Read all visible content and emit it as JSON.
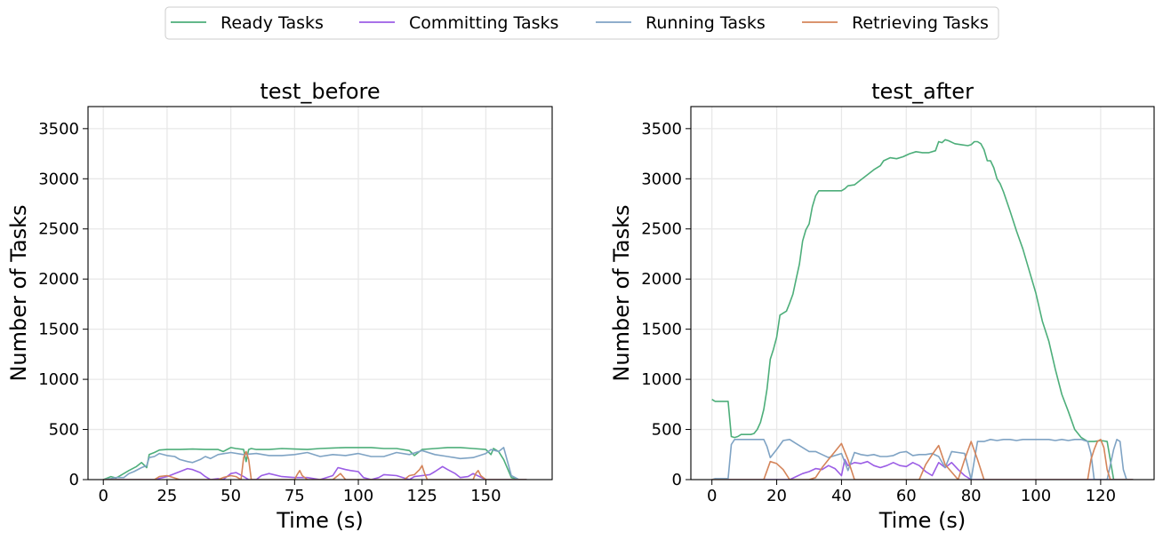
{
  "legend": {
    "placement": "top-center",
    "entries": [
      {
        "label": "Ready Tasks",
        "color": "#4dae7a"
      },
      {
        "label": "Committing Tasks",
        "color": "#9b5de5"
      },
      {
        "label": "Running Tasks",
        "color": "#7fa3c4"
      },
      {
        "label": "Retrieving Tasks",
        "color": "#d4845a"
      }
    ]
  },
  "chart_data": [
    {
      "type": "line",
      "title": "test_before",
      "xlabel": "Time (s)",
      "ylabel": "Number of Tasks",
      "xlim": [
        -6,
        176
      ],
      "ylim": [
        0,
        3720
      ],
      "xticks": [
        0,
        25,
        50,
        75,
        100,
        125,
        150
      ],
      "yticks": [
        0,
        500,
        1000,
        1500,
        2000,
        2500,
        3000,
        3500
      ],
      "grid": true,
      "series": [
        {
          "name": "Ready Tasks",
          "color": "#4dae7a",
          "x": [
            0,
            3,
            5,
            8,
            10,
            13,
            15,
            17,
            18,
            20,
            22,
            25,
            30,
            35,
            40,
            45,
            47,
            50,
            52,
            55,
            56,
            57,
            58,
            60,
            65,
            70,
            75,
            80,
            85,
            90,
            95,
            100,
            105,
            110,
            115,
            120,
            122,
            125,
            130,
            135,
            140,
            145,
            150,
            152,
            153,
            155,
            157,
            160,
            163,
            166
          ],
          "y": [
            0,
            30,
            15,
            60,
            90,
            130,
            170,
            120,
            250,
            270,
            295,
            300,
            300,
            305,
            300,
            300,
            280,
            320,
            310,
            300,
            180,
            300,
            310,
            300,
            300,
            310,
            305,
            300,
            310,
            315,
            320,
            320,
            320,
            310,
            310,
            290,
            240,
            300,
            310,
            320,
            320,
            310,
            300,
            250,
            310,
            280,
            200,
            20,
            0,
            0
          ]
        },
        {
          "name": "Committing Tasks",
          "color": "#9b5de5",
          "x": [
            0,
            20,
            25,
            28,
            30,
            33,
            35,
            38,
            40,
            42,
            45,
            47,
            50,
            52,
            55,
            57,
            60,
            62,
            65,
            70,
            75,
            80,
            85,
            90,
            92,
            95,
            97,
            100,
            102,
            105,
            108,
            110,
            115,
            120,
            122,
            125,
            128,
            130,
            133,
            135,
            138,
            140,
            143,
            145,
            150,
            155,
            160,
            166
          ],
          "y": [
            0,
            0,
            30,
            60,
            80,
            110,
            100,
            70,
            30,
            0,
            10,
            0,
            60,
            70,
            30,
            0,
            0,
            40,
            60,
            30,
            20,
            20,
            0,
            40,
            120,
            100,
            90,
            80,
            20,
            0,
            20,
            50,
            40,
            0,
            30,
            40,
            50,
            80,
            130,
            100,
            60,
            20,
            30,
            60,
            0,
            0,
            0,
            0
          ]
        },
        {
          "name": "Running Tasks",
          "color": "#7fa3c4",
          "x": [
            0,
            3,
            5,
            8,
            10,
            12,
            15,
            17,
            18,
            20,
            22,
            25,
            28,
            30,
            33,
            35,
            38,
            40,
            42,
            45,
            50,
            55,
            60,
            65,
            70,
            75,
            80,
            85,
            90,
            95,
            100,
            105,
            110,
            115,
            120,
            125,
            130,
            135,
            140,
            145,
            150,
            152,
            155,
            157,
            160,
            163,
            166
          ],
          "y": [
            0,
            10,
            20,
            20,
            60,
            80,
            120,
            140,
            220,
            230,
            260,
            240,
            230,
            200,
            180,
            170,
            200,
            230,
            210,
            250,
            270,
            250,
            260,
            240,
            240,
            250,
            270,
            230,
            250,
            240,
            260,
            230,
            230,
            270,
            250,
            290,
            250,
            230,
            210,
            220,
            260,
            300,
            280,
            320,
            40,
            0,
            0
          ]
        },
        {
          "name": "Retrieving Tasks",
          "color": "#d4845a",
          "x": [
            0,
            15,
            20,
            22,
            25,
            30,
            35,
            45,
            47,
            50,
            52,
            54,
            55,
            56,
            57,
            58,
            60,
            70,
            75,
            76,
            77,
            78,
            80,
            90,
            92,
            93,
            94,
            95,
            97,
            100,
            110,
            118,
            120,
            122,
            124,
            125,
            126,
            127,
            128,
            130,
            145,
            146,
            147,
            148,
            150,
            166
          ],
          "y": [
            0,
            0,
            0,
            30,
            40,
            0,
            0,
            0,
            20,
            40,
            30,
            0,
            220,
            280,
            200,
            0,
            0,
            0,
            0,
            50,
            90,
            40,
            0,
            0,
            40,
            60,
            30,
            0,
            0,
            0,
            0,
            0,
            40,
            50,
            100,
            140,
            60,
            0,
            0,
            0,
            0,
            60,
            90,
            40,
            0,
            0
          ]
        }
      ]
    },
    {
      "type": "line",
      "title": "test_after",
      "xlabel": "Time (s)",
      "ylabel": "Number of Tasks",
      "xlim": [
        -6.5,
        136.5
      ],
      "ylim": [
        0,
        3720
      ],
      "xticks": [
        0,
        20,
        40,
        60,
        80,
        100,
        120
      ],
      "yticks": [
        0,
        500,
        1000,
        1500,
        2000,
        2500,
        3000,
        3500
      ],
      "grid": true,
      "series": [
        {
          "name": "Ready Tasks",
          "color": "#4dae7a",
          "x": [
            0,
            1,
            3,
            5,
            6,
            7,
            8,
            9,
            10,
            11,
            12,
            13,
            14,
            15,
            16,
            17,
            18,
            19,
            20,
            21,
            22,
            23,
            24,
            25,
            26,
            27,
            28,
            29,
            30,
            31,
            32,
            33,
            34,
            35,
            36,
            38,
            40,
            41,
            42,
            44,
            46,
            48,
            50,
            52,
            53,
            55,
            57,
            59,
            61,
            63,
            65,
            67,
            69,
            70,
            71,
            72,
            73,
            75,
            77,
            79,
            80,
            81,
            82,
            83,
            84,
            85,
            86,
            87,
            88,
            89,
            90,
            92,
            94,
            96,
            98,
            100,
            102,
            104,
            106,
            108,
            110,
            112,
            114,
            116,
            118,
            120,
            122,
            124,
            126,
            128,
            130
          ],
          "y": [
            800,
            780,
            780,
            780,
            430,
            420,
            430,
            450,
            450,
            450,
            450,
            460,
            500,
            570,
            700,
            900,
            1200,
            1300,
            1420,
            1640,
            1660,
            1680,
            1760,
            1850,
            2000,
            2150,
            2380,
            2490,
            2550,
            2720,
            2830,
            2880,
            2880,
            2880,
            2880,
            2880,
            2880,
            2900,
            2930,
            2940,
            2990,
            3040,
            3090,
            3130,
            3180,
            3210,
            3200,
            3220,
            3250,
            3270,
            3260,
            3260,
            3280,
            3370,
            3360,
            3390,
            3380,
            3350,
            3340,
            3330,
            3340,
            3370,
            3370,
            3350,
            3290,
            3180,
            3180,
            3110,
            3000,
            2950,
            2870,
            2680,
            2480,
            2300,
            2080,
            1860,
            1580,
            1380,
            1100,
            850,
            680,
            500,
            420,
            380,
            380,
            390,
            380,
            0,
            0,
            0,
            0
          ]
        },
        {
          "name": "Committing Tasks",
          "color": "#9b5de5",
          "x": [
            0,
            24,
            26,
            28,
            30,
            32,
            34,
            36,
            38,
            40,
            41,
            42,
            44,
            46,
            48,
            50,
            52,
            54,
            56,
            58,
            60,
            62,
            64,
            66,
            68,
            70,
            72,
            74,
            76,
            78,
            80,
            82,
            84,
            86,
            130
          ],
          "y": [
            0,
            0,
            30,
            60,
            80,
            110,
            100,
            140,
            110,
            40,
            200,
            140,
            170,
            160,
            180,
            140,
            120,
            140,
            170,
            140,
            130,
            170,
            140,
            80,
            40,
            170,
            120,
            170,
            100,
            40,
            0,
            0,
            0,
            0,
            0
          ]
        },
        {
          "name": "Running Tasks",
          "color": "#7fa3c4",
          "x": [
            0,
            1,
            3,
            5,
            6,
            7,
            8,
            9,
            10,
            12,
            14,
            16,
            17,
            18,
            20,
            22,
            24,
            26,
            28,
            30,
            32,
            34,
            36,
            38,
            40,
            42,
            44,
            46,
            48,
            50,
            52,
            54,
            56,
            58,
            60,
            62,
            64,
            66,
            68,
            70,
            72,
            74,
            76,
            78,
            80,
            82,
            84,
            86,
            88,
            90,
            92,
            94,
            96,
            98,
            100,
            102,
            104,
            106,
            108,
            110,
            112,
            114,
            115,
            116,
            117,
            118,
            120,
            122,
            124,
            125,
            126,
            127,
            128,
            130
          ],
          "y": [
            0,
            10,
            10,
            10,
            350,
            400,
            400,
            400,
            400,
            400,
            400,
            400,
            330,
            220,
            300,
            390,
            400,
            360,
            320,
            280,
            280,
            250,
            220,
            240,
            260,
            90,
            270,
            250,
            240,
            250,
            230,
            230,
            240,
            270,
            280,
            240,
            250,
            250,
            260,
            230,
            120,
            280,
            270,
            260,
            0,
            380,
            380,
            400,
            390,
            400,
            400,
            390,
            400,
            400,
            400,
            400,
            400,
            390,
            400,
            390,
            400,
            400,
            390,
            380,
            260,
            0,
            0,
            0,
            300,
            400,
            380,
            100,
            0,
            0
          ]
        },
        {
          "name": "Retrieving Tasks",
          "color": "#d4845a",
          "x": [
            0,
            16,
            18,
            20,
            22,
            24,
            30,
            32,
            34,
            36,
            38,
            40,
            42,
            44,
            50,
            64,
            66,
            68,
            70,
            72,
            76,
            78,
            80,
            82,
            84,
            116,
            117,
            118,
            119,
            120,
            121,
            122,
            123,
            124,
            130
          ],
          "y": [
            0,
            0,
            180,
            160,
            100,
            0,
            0,
            20,
            120,
            200,
            280,
            360,
            200,
            0,
            0,
            0,
            150,
            250,
            340,
            150,
            0,
            200,
            380,
            200,
            0,
            0,
            200,
            300,
            380,
            400,
            320,
            100,
            0,
            0,
            0
          ]
        }
      ]
    }
  ]
}
